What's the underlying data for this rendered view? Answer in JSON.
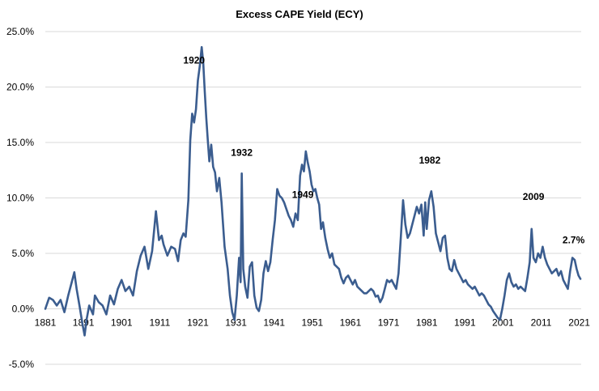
{
  "chart_data": {
    "type": "line",
    "title": "Excess CAPE Yield (ECY)",
    "xlabel": "",
    "ylabel": "",
    "xlim": [
      1881,
      2021.5
    ],
    "ylim": [
      -5,
      25
    ],
    "grid": true,
    "legend": "none",
    "line_color": "#3b5d8f",
    "x_ticks": [
      1881,
      1891,
      1901,
      1911,
      1921,
      1931,
      1941,
      1951,
      1961,
      1971,
      1981,
      1991,
      2001,
      2011,
      2021
    ],
    "x_tick_labels": [
      "1881",
      "1891",
      "1901",
      "1911",
      "1921",
      "1931",
      "1941",
      "1951",
      "1961",
      "1971",
      "1981",
      "1991",
      "2001",
      "2011",
      "2021"
    ],
    "y_ticks": [
      -5,
      0,
      5,
      10,
      15,
      20,
      25
    ],
    "y_tick_labels": [
      "-5.0%",
      "0.0%",
      "5.0%",
      "10.0%",
      "15.0%",
      "20.0%",
      "25.0%"
    ],
    "annotations": [
      {
        "text": "1920",
        "x": 1920.0,
        "y": 22.4
      },
      {
        "text": "1932",
        "x": 1932.5,
        "y": 14.1
      },
      {
        "text": "1949",
        "x": 1948.5,
        "y": 10.3
      },
      {
        "text": "1982",
        "x": 1981.8,
        "y": 13.4
      },
      {
        "text": "2009",
        "x": 2009.0,
        "y": 10.1
      },
      {
        "text": "2.7%",
        "x": 2019.5,
        "y": 6.2
      }
    ],
    "series": [
      {
        "values": [
          [
            1881.0,
            0.0
          ],
          [
            1882.0,
            1.0
          ],
          [
            1883.0,
            0.8
          ],
          [
            1884.0,
            0.3
          ],
          [
            1885.0,
            0.8
          ],
          [
            1886.0,
            -0.3
          ],
          [
            1887.0,
            1.2
          ],
          [
            1888.0,
            2.5
          ],
          [
            1888.6,
            3.3
          ],
          [
            1889.2,
            1.8
          ],
          [
            1890.0,
            0.2
          ],
          [
            1890.7,
            -1.3
          ],
          [
            1891.3,
            -2.4
          ],
          [
            1891.8,
            -1.0
          ],
          [
            1892.5,
            0.3
          ],
          [
            1893.5,
            -0.5
          ],
          [
            1894.0,
            1.2
          ],
          [
            1895.0,
            0.6
          ],
          [
            1896.0,
            0.3
          ],
          [
            1897.0,
            -0.5
          ],
          [
            1898.0,
            1.2
          ],
          [
            1899.0,
            0.4
          ],
          [
            1900.0,
            1.8
          ],
          [
            1901.0,
            2.6
          ],
          [
            1902.0,
            1.6
          ],
          [
            1903.0,
            2.0
          ],
          [
            1904.0,
            1.2
          ],
          [
            1905.0,
            3.4
          ],
          [
            1906.0,
            4.8
          ],
          [
            1907.0,
            5.6
          ],
          [
            1908.0,
            3.6
          ],
          [
            1909.0,
            5.2
          ],
          [
            1910.0,
            8.8
          ],
          [
            1910.8,
            6.2
          ],
          [
            1911.5,
            6.6
          ],
          [
            1912.0,
            5.8
          ],
          [
            1913.0,
            4.8
          ],
          [
            1914.0,
            5.6
          ],
          [
            1915.0,
            5.4
          ],
          [
            1915.8,
            4.3
          ],
          [
            1916.5,
            6.2
          ],
          [
            1917.2,
            6.8
          ],
          [
            1917.8,
            6.5
          ],
          [
            1918.5,
            9.8
          ],
          [
            1919.0,
            15.2
          ],
          [
            1919.5,
            17.6
          ],
          [
            1920.0,
            16.8
          ],
          [
            1920.5,
            18.0
          ],
          [
            1921.0,
            20.6
          ],
          [
            1921.5,
            21.9
          ],
          [
            1922.0,
            23.6
          ],
          [
            1922.4,
            22.2
          ],
          [
            1922.8,
            19.6
          ],
          [
            1923.2,
            17.2
          ],
          [
            1923.6,
            15.2
          ],
          [
            1924.0,
            13.3
          ],
          [
            1924.5,
            14.8
          ],
          [
            1925.0,
            12.8
          ],
          [
            1925.5,
            12.3
          ],
          [
            1926.0,
            10.6
          ],
          [
            1926.6,
            11.8
          ],
          [
            1927.2,
            9.6
          ],
          [
            1928.0,
            5.6
          ],
          [
            1928.8,
            3.6
          ],
          [
            1929.4,
            1.2
          ],
          [
            1930.0,
            -0.3
          ],
          [
            1930.6,
            -1.0
          ],
          [
            1931.2,
            1.2
          ],
          [
            1931.8,
            4.6
          ],
          [
            1932.2,
            2.4
          ],
          [
            1932.5,
            12.2
          ],
          [
            1932.9,
            3.6
          ],
          [
            1933.4,
            2.0
          ],
          [
            1934.0,
            1.0
          ],
          [
            1934.6,
            3.8
          ],
          [
            1935.2,
            4.2
          ],
          [
            1935.8,
            1.2
          ],
          [
            1936.4,
            0.1
          ],
          [
            1937.0,
            -0.2
          ],
          [
            1937.6,
            0.8
          ],
          [
            1938.2,
            3.2
          ],
          [
            1938.8,
            4.3
          ],
          [
            1939.4,
            3.4
          ],
          [
            1940.0,
            4.2
          ],
          [
            1940.6,
            6.2
          ],
          [
            1941.2,
            8.0
          ],
          [
            1941.8,
            10.8
          ],
          [
            1942.4,
            10.2
          ],
          [
            1943.0,
            10.0
          ],
          [
            1943.6,
            9.6
          ],
          [
            1944.2,
            9.0
          ],
          [
            1944.8,
            8.4
          ],
          [
            1945.4,
            8.0
          ],
          [
            1946.0,
            7.4
          ],
          [
            1946.6,
            8.6
          ],
          [
            1947.2,
            8.0
          ],
          [
            1947.8,
            12.0
          ],
          [
            1948.3,
            13.0
          ],
          [
            1948.8,
            12.4
          ],
          [
            1949.3,
            14.2
          ],
          [
            1949.8,
            13.2
          ],
          [
            1950.3,
            12.4
          ],
          [
            1950.8,
            11.2
          ],
          [
            1951.3,
            10.6
          ],
          [
            1951.8,
            10.8
          ],
          [
            1952.3,
            10.0
          ],
          [
            1952.8,
            9.4
          ],
          [
            1953.3,
            7.2
          ],
          [
            1953.8,
            7.8
          ],
          [
            1954.4,
            6.4
          ],
          [
            1955.0,
            5.4
          ],
          [
            1955.6,
            4.6
          ],
          [
            1956.2,
            5.0
          ],
          [
            1956.8,
            4.0
          ],
          [
            1957.4,
            3.8
          ],
          [
            1958.0,
            3.6
          ],
          [
            1958.6,
            2.8
          ],
          [
            1959.2,
            2.3
          ],
          [
            1959.8,
            2.8
          ],
          [
            1960.4,
            3.0
          ],
          [
            1961.0,
            2.6
          ],
          [
            1961.6,
            2.2
          ],
          [
            1962.2,
            2.6
          ],
          [
            1962.8,
            2.0
          ],
          [
            1963.4,
            1.8
          ],
          [
            1964.0,
            1.6
          ],
          [
            1964.6,
            1.4
          ],
          [
            1965.2,
            1.4
          ],
          [
            1965.8,
            1.6
          ],
          [
            1966.4,
            1.8
          ],
          [
            1967.0,
            1.6
          ],
          [
            1967.6,
            1.1
          ],
          [
            1968.2,
            1.2
          ],
          [
            1968.8,
            0.6
          ],
          [
            1969.4,
            1.0
          ],
          [
            1970.0,
            1.8
          ],
          [
            1970.6,
            2.6
          ],
          [
            1971.2,
            2.4
          ],
          [
            1971.8,
            2.6
          ],
          [
            1972.4,
            2.2
          ],
          [
            1973.0,
            1.8
          ],
          [
            1973.6,
            3.2
          ],
          [
            1974.2,
            6.4
          ],
          [
            1974.8,
            9.8
          ],
          [
            1975.4,
            7.6
          ],
          [
            1976.0,
            6.4
          ],
          [
            1976.6,
            6.8
          ],
          [
            1977.2,
            7.6
          ],
          [
            1977.8,
            8.4
          ],
          [
            1978.4,
            9.2
          ],
          [
            1979.0,
            8.6
          ],
          [
            1979.6,
            9.4
          ],
          [
            1980.2,
            6.6
          ],
          [
            1980.6,
            9.6
          ],
          [
            1981.0,
            7.2
          ],
          [
            1981.6,
            9.8
          ],
          [
            1982.2,
            10.6
          ],
          [
            1982.8,
            9.2
          ],
          [
            1983.4,
            6.8
          ],
          [
            1984.0,
            6.0
          ],
          [
            1984.6,
            5.2
          ],
          [
            1985.2,
            6.4
          ],
          [
            1985.8,
            6.6
          ],
          [
            1986.4,
            4.6
          ],
          [
            1987.0,
            3.6
          ],
          [
            1987.6,
            3.4
          ],
          [
            1988.2,
            4.4
          ],
          [
            1988.8,
            3.6
          ],
          [
            1989.4,
            3.2
          ],
          [
            1990.0,
            2.8
          ],
          [
            1990.6,
            2.4
          ],
          [
            1991.2,
            2.6
          ],
          [
            1991.8,
            2.2
          ],
          [
            1992.4,
            2.0
          ],
          [
            1993.0,
            1.8
          ],
          [
            1993.6,
            2.0
          ],
          [
            1994.2,
            1.6
          ],
          [
            1994.8,
            1.2
          ],
          [
            1995.4,
            1.4
          ],
          [
            1996.0,
            1.2
          ],
          [
            1996.6,
            0.8
          ],
          [
            1997.2,
            0.4
          ],
          [
            1997.8,
            0.2
          ],
          [
            1998.4,
            -0.2
          ],
          [
            1999.0,
            -0.5
          ],
          [
            1999.6,
            -0.8
          ],
          [
            2000.2,
            -1.0
          ],
          [
            2000.8,
            0.0
          ],
          [
            2001.4,
            1.2
          ],
          [
            2002.0,
            2.6
          ],
          [
            2002.6,
            3.2
          ],
          [
            2003.2,
            2.4
          ],
          [
            2003.8,
            2.0
          ],
          [
            2004.4,
            2.2
          ],
          [
            2005.0,
            1.8
          ],
          [
            2005.6,
            2.0
          ],
          [
            2006.2,
            1.8
          ],
          [
            2006.8,
            1.6
          ],
          [
            2007.4,
            2.8
          ],
          [
            2008.0,
            4.2
          ],
          [
            2008.5,
            7.2
          ],
          [
            2009.0,
            4.6
          ],
          [
            2009.6,
            4.2
          ],
          [
            2010.2,
            5.0
          ],
          [
            2010.8,
            4.6
          ],
          [
            2011.4,
            5.6
          ],
          [
            2012.0,
            4.6
          ],
          [
            2012.6,
            4.0
          ],
          [
            2013.2,
            3.6
          ],
          [
            2013.8,
            3.2
          ],
          [
            2014.4,
            3.4
          ],
          [
            2015.0,
            3.6
          ],
          [
            2015.6,
            3.0
          ],
          [
            2016.2,
            3.4
          ],
          [
            2016.8,
            2.6
          ],
          [
            2017.4,
            2.2
          ],
          [
            2018.0,
            1.8
          ],
          [
            2018.6,
            3.4
          ],
          [
            2019.2,
            4.6
          ],
          [
            2019.8,
            4.4
          ],
          [
            2020.3,
            3.6
          ],
          [
            2020.8,
            3.0
          ],
          [
            2021.3,
            2.7
          ]
        ]
      }
    ]
  }
}
